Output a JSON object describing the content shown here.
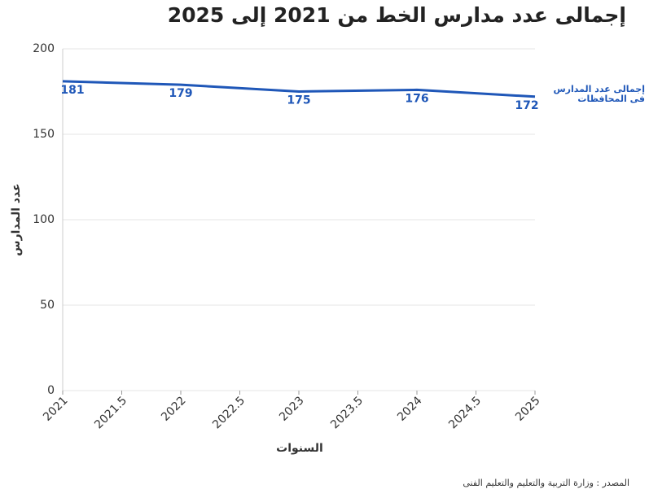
{
  "chart_data": {
    "type": "line",
    "title": "إجمالى عدد مدارس الخط من 2021 إلى 2025",
    "x": [
      2021,
      2022,
      2023,
      2024,
      2025
    ],
    "series": [
      {
        "name": "إجمالى عدد المدارس فى المحافظات",
        "color": "#1f57b8",
        "values": [
          181,
          179,
          175,
          176,
          172
        ]
      }
    ],
    "xlim": [
      2021,
      2025
    ],
    "ylim": [
      0,
      200
    ],
    "xticks": [
      2021,
      2021.5,
      2022,
      2022.5,
      2023,
      2023.5,
      2024,
      2024.5,
      2025
    ],
    "yticks": [
      0,
      50,
      100,
      150,
      200
    ],
    "xlabel": "السنوات",
    "ylabel": "عدد المدارس",
    "source": "المصدر : وزارة التربية والتعليم والتعليم الفنى",
    "grid": true
  }
}
